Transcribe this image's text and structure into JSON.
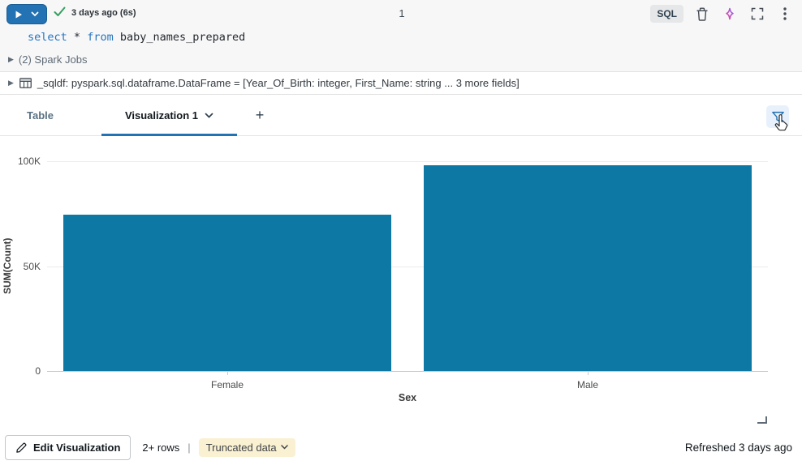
{
  "toolbar": {
    "last_run": "3 days ago (6s)",
    "cell_number": "1",
    "language_badge": "SQL"
  },
  "code": {
    "keyword1": "select",
    "operator": "*",
    "keyword2": "from",
    "identifier": "baby_names_prepared"
  },
  "spark_jobs_label": "(2) Spark Jobs",
  "sqldf_line": "_sqldf:  pyspark.sql.dataframe.DataFrame = [Year_Of_Birth: integer, First_Name: string ... 3 more fields]",
  "tabs": {
    "table_label": "Table",
    "viz_label": "Visualization 1",
    "add_label": "+"
  },
  "chart_data": {
    "type": "bar",
    "title": "",
    "categories": [
      "Female",
      "Male"
    ],
    "values": [
      74500,
      98000
    ],
    "xlabel": "Sex",
    "ylabel": "SUM(Count)",
    "ylim": [
      0,
      100000
    ],
    "yticks": [
      {
        "label": "0",
        "value": 0
      },
      {
        "label": "50K",
        "value": 50000
      },
      {
        "label": "100K",
        "value": 100000
      }
    ],
    "grid": true,
    "legend": false,
    "bar_color": "#0E78A4"
  },
  "footer": {
    "edit_button": "Edit Visualization",
    "rows_count": "2+ rows",
    "separator": "|",
    "truncated_label": "Truncated data",
    "refreshed": "Refreshed 3 days ago"
  },
  "colors": {
    "accent_blue": "#2272b4",
    "bar_teal": "#0E78A4",
    "check_green": "#35a05e",
    "chip_bg": "#faf0d2",
    "top_bg": "#f7f7f8"
  }
}
